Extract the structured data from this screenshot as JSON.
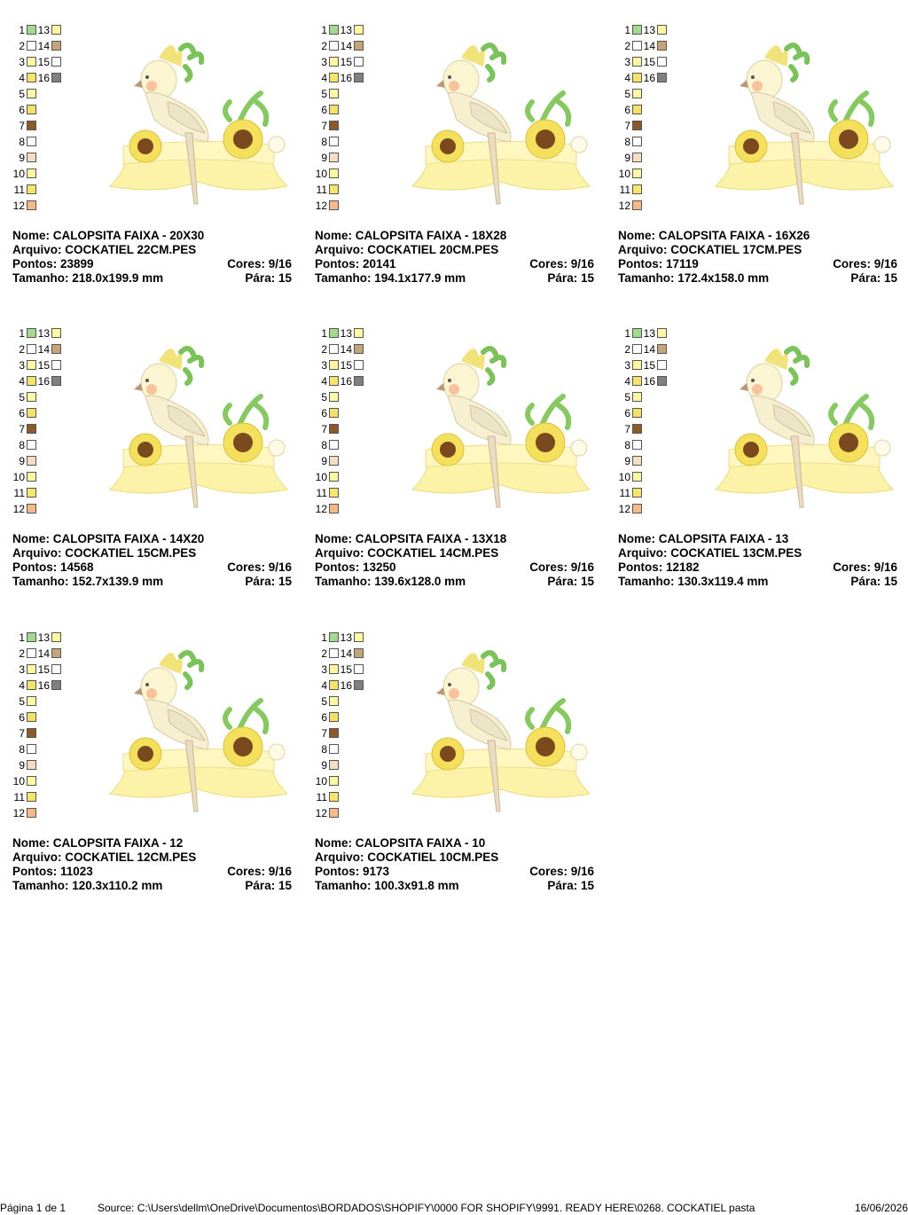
{
  "labels": {
    "name": "Nome:",
    "file": "Arquivo:",
    "points": "Pontos:",
    "colors": "Cores:",
    "stops": "Pára:",
    "size": "Tamanho:"
  },
  "palette": [
    {
      "number": 1,
      "color": "#a3d98c"
    },
    {
      "number": 2,
      "color": "#ffffff"
    },
    {
      "number": 3,
      "color": "#fff6a3"
    },
    {
      "number": 4,
      "color": "#f4e46c"
    },
    {
      "number": 5,
      "color": "#fff8a6"
    },
    {
      "number": 6,
      "color": "#f3e26a"
    },
    {
      "number": 7,
      "color": "#8a5a2c"
    },
    {
      "number": 8,
      "color": "#ffffff"
    },
    {
      "number": 9,
      "color": "#f4dcc6"
    },
    {
      "number": 10,
      "color": "#fff7a4"
    },
    {
      "number": 11,
      "color": "#f4e56c"
    },
    {
      "number": 12,
      "color": "#f6b98a"
    },
    {
      "number": 13,
      "color": "#fff7a2"
    },
    {
      "number": 14,
      "color": "#c6a47a"
    },
    {
      "number": 15,
      "color": "#ffffff"
    },
    {
      "number": 16,
      "color": "#808080"
    }
  ],
  "cards": [
    {
      "name": "CALOPSITA FAIXA - 20X30",
      "file": "COCKATIEL 22CM.PES",
      "points": 23899,
      "colors": "9/16",
      "stops": 15,
      "size": "218.0x199.9 mm"
    },
    {
      "name": "CALOPSITA FAIXA - 18X28",
      "file": "COCKATIEL 20CM.PES",
      "points": 20141,
      "colors": "9/16",
      "stops": 15,
      "size": "194.1x177.9 mm"
    },
    {
      "name": "CALOPSITA FAIXA - 16X26",
      "file": "COCKATIEL 17CM.PES",
      "points": 17119,
      "colors": "9/16",
      "stops": 15,
      "size": "172.4x158.0 mm"
    },
    {
      "name": "CALOPSITA FAIXA - 14X20",
      "file": "COCKATIEL 15CM.PES",
      "points": 14568,
      "colors": "9/16",
      "stops": 15,
      "size": "152.7x139.9 mm"
    },
    {
      "name": "CALOPSITA FAIXA - 13X18",
      "file": "COCKATIEL 14CM.PES",
      "points": 13250,
      "colors": "9/16",
      "stops": 15,
      "size": "139.6x128.0 mm"
    },
    {
      "name": "CALOPSITA FAIXA - 13",
      "file": "COCKATIEL 13CM.PES",
      "points": 12182,
      "colors": "9/16",
      "stops": 15,
      "size": "130.3x119.4 mm"
    },
    {
      "name": "CALOPSITA FAIXA - 12",
      "file": "COCKATIEL 12CM.PES",
      "points": 11023,
      "colors": "9/16",
      "stops": 15,
      "size": "120.3x110.2 mm"
    },
    {
      "name": "CALOPSITA FAIXA - 10",
      "file": "COCKATIEL 10CM.PES",
      "points": 9173,
      "colors": "9/16",
      "stops": 15,
      "size": "100.3x91.8 mm"
    }
  ],
  "footer": {
    "page": "Página 1 de 1",
    "source": "Source: C:\\Users\\dellm\\OneDrive\\Documentos\\BORDADOS\\SHOPIFY\\0000 FOR SHOPIFY\\9991. READY HERE\\0268. COCKATIEL pasta",
    "date": "16/06/2026"
  }
}
